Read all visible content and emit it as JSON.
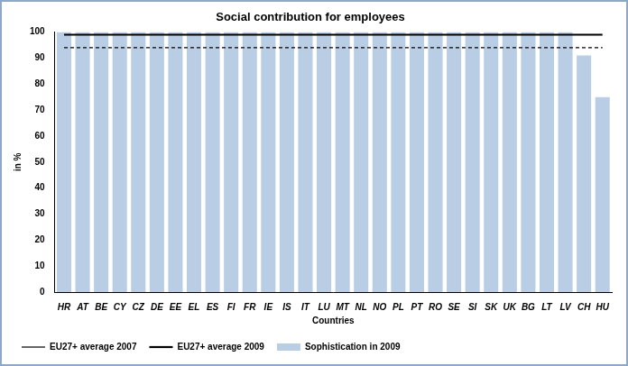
{
  "chart_data": {
    "type": "bar",
    "title": "Social contribution for employees",
    "x_label": "Countries",
    "y_label": "in %",
    "categories": [
      "HR",
      "AT",
      "BE",
      "CY",
      "CZ",
      "DE",
      "EE",
      "EL",
      "ES",
      "FI",
      "FR",
      "IE",
      "IS",
      "IT",
      "LU",
      "MT",
      "NL",
      "NO",
      "PL",
      "PT",
      "RO",
      "SE",
      "SI",
      "SK",
      "UK",
      "BG",
      "LT",
      "LV",
      "CH",
      "HU"
    ],
    "series": [
      {
        "name": "Sophistication in 2009",
        "type": "bar",
        "color": "#b9cde5",
        "values": [
          100,
          100,
          100,
          100,
          100,
          100,
          100,
          100,
          100,
          100,
          100,
          100,
          100,
          100,
          100,
          100,
          100,
          100,
          100,
          100,
          100,
          100,
          100,
          100,
          100,
          100,
          100,
          100,
          91,
          75
        ]
      },
      {
        "name": "EU27+ average 2007",
        "type": "line",
        "color": "#000000",
        "line_style": "dashed",
        "values": [
          94,
          94,
          94,
          94,
          94,
          94,
          94,
          94,
          94,
          94,
          94,
          94,
          94,
          94,
          94,
          94,
          94,
          94,
          94,
          94,
          94,
          94,
          94,
          94,
          94,
          94,
          94,
          94,
          94,
          94
        ]
      },
      {
        "name": "EU27+ average 2009",
        "type": "line",
        "color": "#000000",
        "line_style": "solid",
        "values": [
          99,
          99,
          99,
          99,
          99,
          99,
          99,
          99,
          99,
          99,
          99,
          99,
          99,
          99,
          99,
          99,
          99,
          99,
          99,
          99,
          99,
          99,
          99,
          99,
          99,
          99,
          99,
          99,
          99,
          99
        ]
      }
    ],
    "ylim": [
      0,
      100
    ],
    "yticks": [
      0,
      10,
      20,
      30,
      40,
      50,
      60,
      70,
      80,
      90,
      100
    ],
    "grid": false,
    "legend": "lower left"
  }
}
